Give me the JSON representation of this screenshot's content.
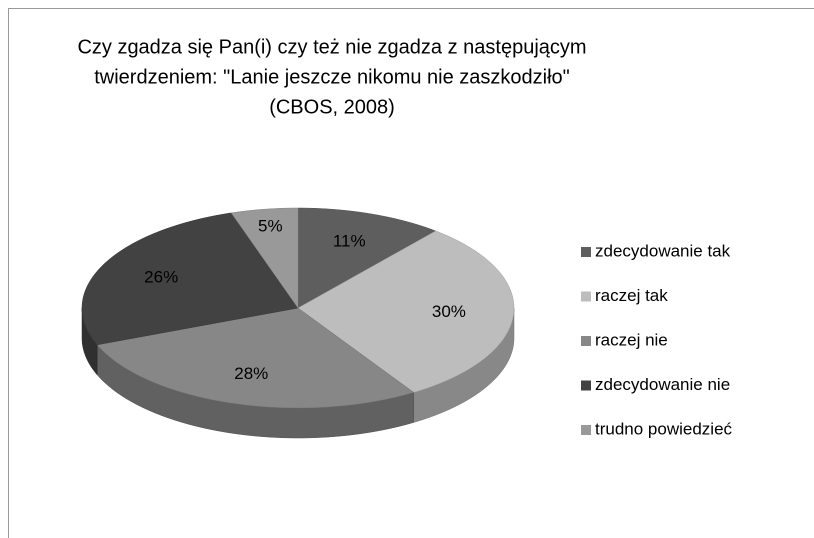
{
  "chart_data": {
    "type": "pie",
    "title": [
      "Czy zgadza się Pan(i) czy też nie zgadza z następującym",
      "twierdzeniem: \"Lanie jeszcze nikomu nie zaszkodziło\"",
      "(CBOS, 2008)"
    ],
    "categories": [
      "zdecydowanie tak",
      "raczej tak",
      "raczej nie",
      "zdecydowanie nie",
      "trudno powiedzieć"
    ],
    "values": [
      11,
      30,
      28,
      26,
      5
    ],
    "value_labels": [
      "11%",
      "30%",
      "28%",
      "26%",
      "5%"
    ],
    "colors": [
      "#5e5e5e",
      "#bdbdbd",
      "#878787",
      "#424242",
      "#999999"
    ],
    "legend": "right"
  }
}
